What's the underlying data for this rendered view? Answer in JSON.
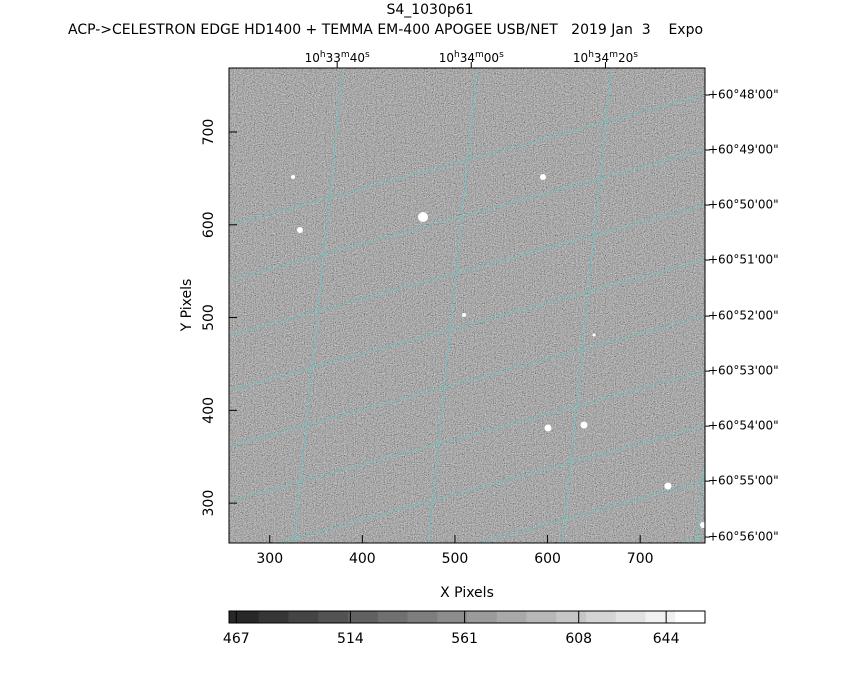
{
  "chart_data": {
    "type": "image",
    "title": "S4_1030p61",
    "subtitle": "ACP->CELESTRON EDGE HD1400 + TEMMA EM-400 APOGEE USB/NET   2019 Jan  3    Expo",
    "xlabel": "X Pixels",
    "ylabel": "Y Pixels",
    "xlim": [
      256,
      770
    ],
    "ylim": [
      257,
      769
    ],
    "xticks": [
      300,
      400,
      500,
      600,
      700
    ],
    "yticks": [
      300,
      400,
      500,
      600,
      700
    ],
    "grid": true,
    "grid_color": "#5fc8c8",
    "ra_ticks": [
      {
        "value": 372.8,
        "label": [
          "10",
          "h",
          "33",
          "m",
          "40",
          "s"
        ]
      },
      {
        "value": 517.6,
        "label": [
          "10",
          "h",
          "34",
          "m",
          "00",
          "s"
        ]
      },
      {
        "value": 662.5,
        "label": [
          "10",
          "h",
          "34",
          "m",
          "20",
          "s"
        ]
      }
    ],
    "dec_ticks": [
      {
        "value": 739.9,
        "label": "+60°48'00\""
      },
      {
        "value": 680.6,
        "label": "+60°49'00\""
      },
      {
        "value": 621.3,
        "label": "+60°50'00\""
      },
      {
        "value": 562.0,
        "label": "+60°51'00\""
      },
      {
        "value": 501.6,
        "label": "+60°52'00\""
      },
      {
        "value": 442.3,
        "label": "+60°53'00\""
      },
      {
        "value": 383.0,
        "label": "+60°54'00\""
      },
      {
        "value": 323.7,
        "label": "+60°55'00\""
      },
      {
        "value": 263.4,
        "label": "+60°56'00\""
      }
    ],
    "colorbar": {
      "lim": [
        464,
        660
      ],
      "ticks": [
        467,
        514,
        561,
        608,
        644
      ]
    }
  }
}
